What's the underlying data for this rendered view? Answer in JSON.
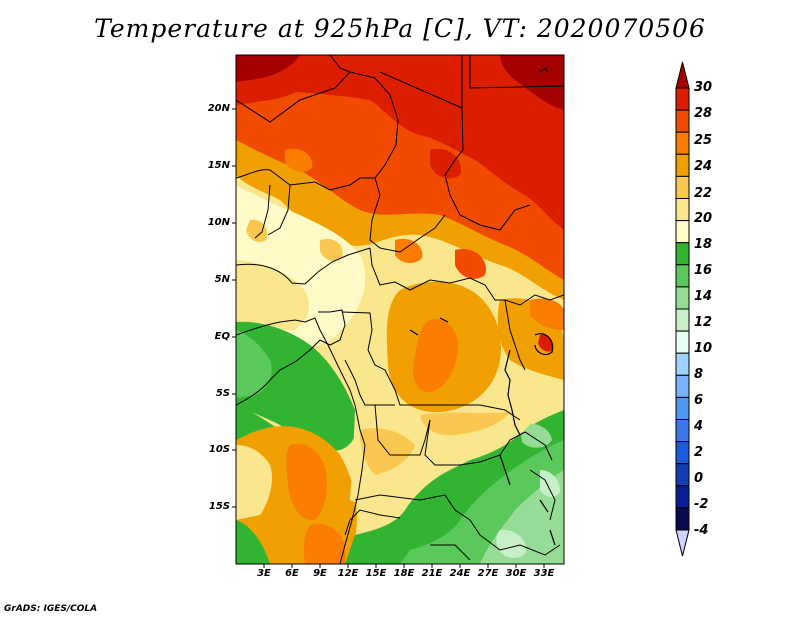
{
  "title": "Temperature at 925hPa [C], VT: 2020070506",
  "credit": "GrADS: IGES/COLA",
  "lat_labels": [
    "20N",
    "15N",
    "10N",
    "5N",
    "EQ",
    "5S",
    "10S",
    "15S"
  ],
  "lon_labels": [
    "3E",
    "6E",
    "9E",
    "12E",
    "15E",
    "18E",
    "21E",
    "24E",
    "27E",
    "30E",
    "33E"
  ],
  "colorbar": {
    "labels": [
      "30",
      "28",
      "25",
      "24",
      "22",
      "20",
      "18",
      "16",
      "14",
      "12",
      "10",
      "8",
      "6",
      "4",
      "2",
      "0",
      "-2",
      "-4"
    ],
    "colors": [
      "#a50000",
      "#dc1e00",
      "#f04b00",
      "#fa7d00",
      "#f0a000",
      "#fac850",
      "#fae68c",
      "#fffac8",
      "#32b432",
      "#5ac85a",
      "#96dc96",
      "#c8f0c8",
      "#e6fff0",
      "#a0d2ff",
      "#78b4ff",
      "#5096f0",
      "#3c78e6",
      "#1e5adc",
      "#143cb4",
      "#0a1e96",
      "#0a0a50",
      "#d2d2ff"
    ]
  }
}
